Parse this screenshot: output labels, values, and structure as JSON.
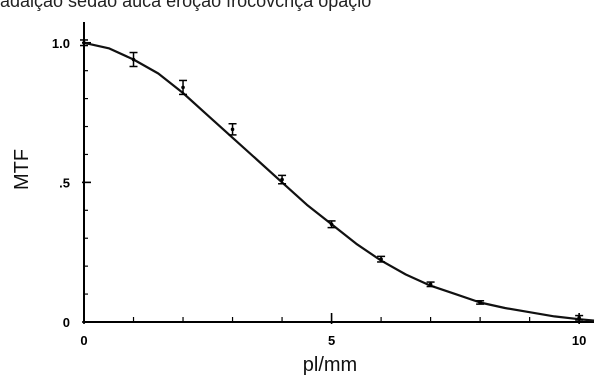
{
  "caption": "adaição sedao auca eroção frocovcnça opaçio",
  "chart_data": {
    "type": "line",
    "title": "",
    "xlabel": "pl/mm",
    "ylabel": "MTF",
    "xlim": [
      0,
      10.3
    ],
    "ylim": [
      0,
      1.06
    ],
    "xticks": [
      0,
      5,
      10
    ],
    "xtick_labels": [
      "0",
      "5",
      "10"
    ],
    "yticks": [
      0,
      0.5,
      1.0
    ],
    "ytick_labels": [
      "0",
      ".5",
      "1.0"
    ],
    "x_minor_ticks": [
      1,
      2,
      3,
      4,
      6,
      7,
      8,
      9
    ],
    "y_minor_ticks": [
      0.1,
      0.2,
      0.3,
      0.4,
      0.6,
      0.7,
      0.8,
      0.9
    ],
    "grid": false,
    "series": [
      {
        "style": "fitted-curve",
        "x": [
          0,
          0.5,
          1,
          1.5,
          2,
          2.5,
          3,
          3.5,
          4,
          4.5,
          5,
          5.5,
          6,
          6.5,
          7,
          7.5,
          8,
          8.5,
          9,
          9.5,
          10,
          10.3
        ],
        "y": [
          1.0,
          0.98,
          0.94,
          0.89,
          0.82,
          0.74,
          0.66,
          0.58,
          0.5,
          0.42,
          0.35,
          0.28,
          0.22,
          0.17,
          0.13,
          0.1,
          0.07,
          0.05,
          0.035,
          0.02,
          0.01,
          0.005
        ]
      },
      {
        "style": "measured-error-bars",
        "x": [
          0,
          1,
          2,
          3,
          4,
          5,
          6,
          7,
          8,
          10
        ],
        "y": [
          1.0,
          0.94,
          0.84,
          0.69,
          0.51,
          0.35,
          0.225,
          0.135,
          0.07,
          0.015
        ],
        "err": [
          0.01,
          0.025,
          0.025,
          0.02,
          0.015,
          0.012,
          0.01,
          0.008,
          0.006,
          0.008
        ]
      }
    ]
  }
}
